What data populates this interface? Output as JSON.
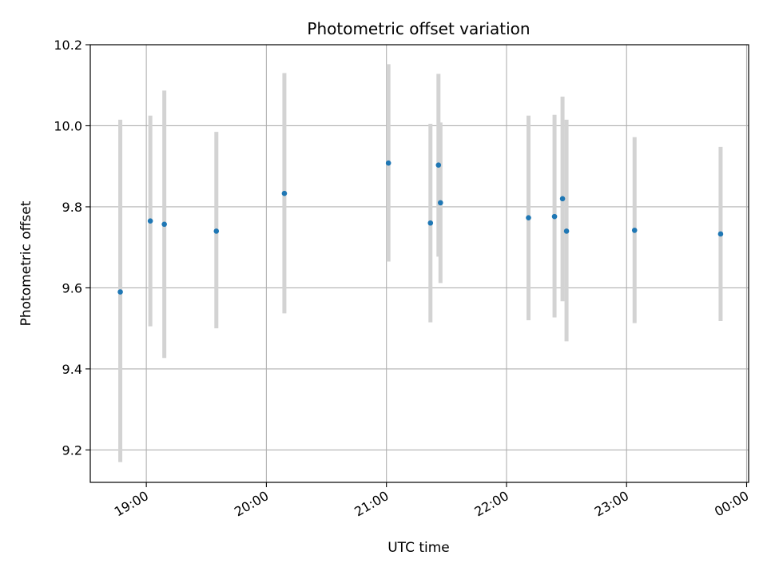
{
  "chart_data": {
    "type": "scatter",
    "title": "Photometric offset variation",
    "xlabel": "UTC time",
    "ylabel": "Photometric offset",
    "x_axis_type": "time",
    "xlim": [
      "18:32",
      "00:01"
    ],
    "ylim": [
      9.12,
      10.2
    ],
    "xticks": [
      {
        "time": "19:00",
        "label": "19:00"
      },
      {
        "time": "20:00",
        "label": "20:00"
      },
      {
        "time": "21:00",
        "label": "21:00"
      },
      {
        "time": "22:00",
        "label": "22:00"
      },
      {
        "time": "23:00",
        "label": "23:00"
      },
      {
        "time": "00:00",
        "label": "00:00"
      }
    ],
    "yticks": [
      9.2,
      9.4,
      9.6,
      9.8,
      10.0,
      10.2
    ],
    "ytick_labels": [
      "9.2",
      "9.4",
      "9.6",
      "9.8",
      "10.0",
      "10.2"
    ],
    "grid": true,
    "point_color": "#1f77b4",
    "errorbar_color": "#d3d3d3",
    "points": [
      {
        "time": "18:47",
        "y": 9.59,
        "low": 9.17,
        "high": 10.015
      },
      {
        "time": "19:02",
        "y": 9.765,
        "low": 9.505,
        "high": 10.025
      },
      {
        "time": "19:09",
        "y": 9.757,
        "low": 9.427,
        "high": 10.087
      },
      {
        "time": "19:35",
        "y": 9.74,
        "low": 9.5,
        "high": 9.985
      },
      {
        "time": "20:09",
        "y": 9.833,
        "low": 9.537,
        "high": 10.13
      },
      {
        "time": "21:01",
        "y": 9.908,
        "low": 9.665,
        "high": 10.152
      },
      {
        "time": "21:22",
        "y": 9.76,
        "low": 9.515,
        "high": 10.005
      },
      {
        "time": "21:26",
        "y": 9.903,
        "low": 9.677,
        "high": 10.128
      },
      {
        "time": "21:27",
        "y": 9.81,
        "low": 9.612,
        "high": 10.008
      },
      {
        "time": "22:11",
        "y": 9.773,
        "low": 9.52,
        "high": 10.025
      },
      {
        "time": "22:24",
        "y": 9.776,
        "low": 9.527,
        "high": 10.027
      },
      {
        "time": "22:28",
        "y": 9.82,
        "low": 9.567,
        "high": 10.072
      },
      {
        "time": "22:30",
        "y": 9.74,
        "low": 9.468,
        "high": 10.015
      },
      {
        "time": "23:04",
        "y": 9.742,
        "low": 9.513,
        "high": 9.972
      },
      {
        "time": "23:47",
        "y": 9.733,
        "low": 9.518,
        "high": 9.948
      }
    ]
  }
}
